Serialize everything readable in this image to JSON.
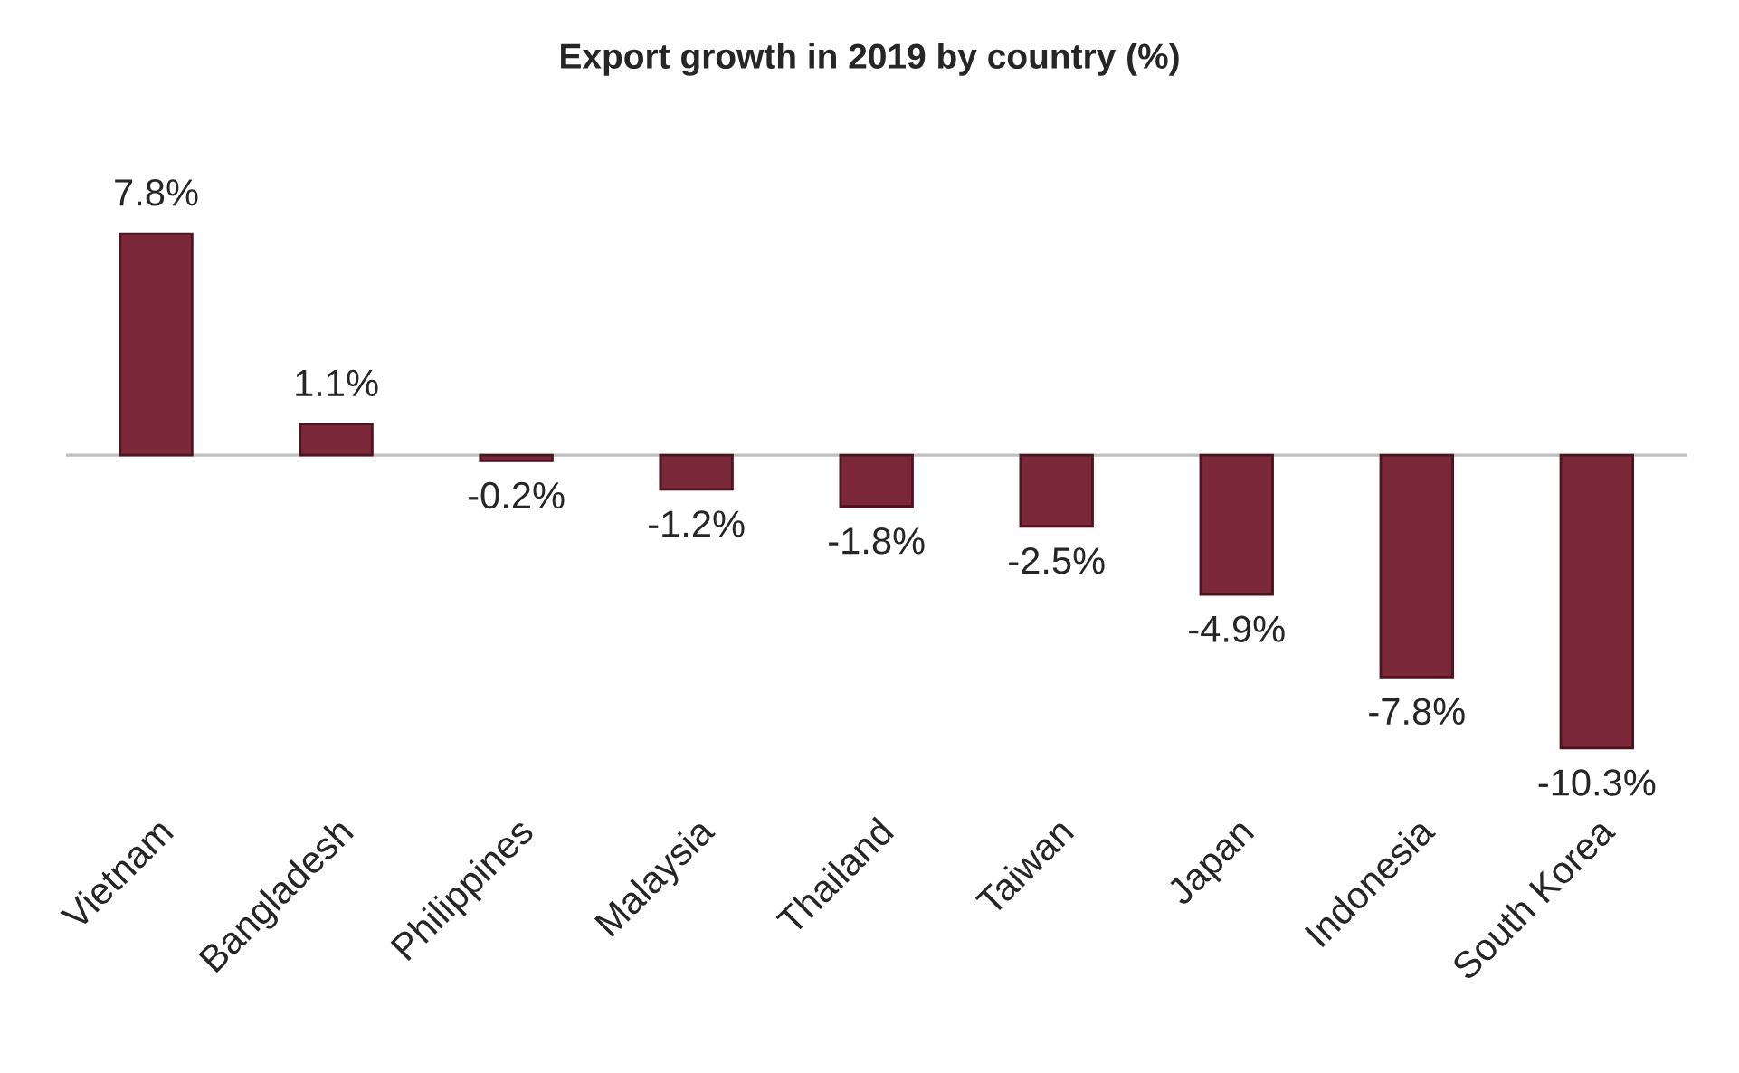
{
  "chart_data": {
    "type": "bar",
    "title": "Export growth in 2019 by country (%)",
    "categories": [
      "Vietnam",
      "Bangladesh",
      "Philippines",
      "Malaysia",
      "Thailand",
      "Taiwan",
      "Japan",
      "Indonesia",
      "South Korea"
    ],
    "values": [
      7.8,
      1.1,
      -0.2,
      -1.2,
      -1.8,
      -2.5,
      -4.9,
      -7.8,
      -10.3
    ],
    "value_labels": [
      "7.8%",
      "1.1%",
      "-0.2%",
      "-1.2%",
      "-1.8%",
      "-2.5%",
      "-4.9%",
      "-7.8%",
      "-10.3%"
    ],
    "color": "#7b2838",
    "grid": false,
    "legend": false
  }
}
